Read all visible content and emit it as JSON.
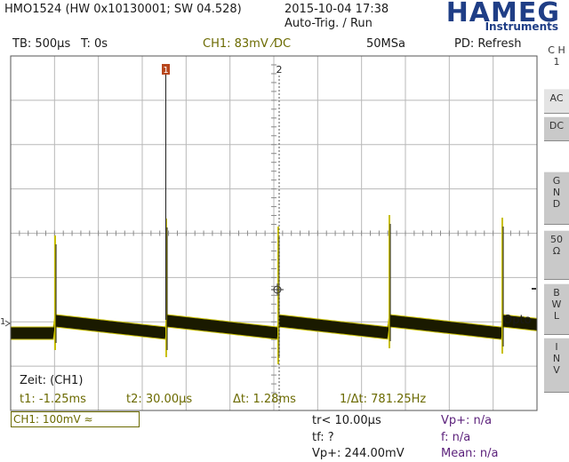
{
  "header": {
    "device": "HMO1524 (HW 0x10130001; SW 04.528)",
    "datetime": "2015-10-04 17:38",
    "trigger_mode": "Auto-Trig. / Run"
  },
  "logo": {
    "brand": "HAMEG",
    "sub": "Instruments"
  },
  "statusbar": {
    "timebase": "TB: 500µs",
    "trigger_time": "T: 0s",
    "channel": "CH1: 83mV ⁄DC",
    "sample_rate": "50MSa",
    "mode": "PD: Refresh"
  },
  "markers": {
    "cursor1": "1",
    "cursor2": "2"
  },
  "right_panel": {
    "channel_label": "C H 1",
    "buttons": [
      {
        "label": "AC",
        "selected": true
      },
      {
        "label": "DC",
        "selected": false
      },
      {
        "label": "G N D",
        "selected": false
      },
      {
        "label": "50 Ω",
        "selected": false
      },
      {
        "label": "B W L",
        "selected": false
      },
      {
        "label": "I N V",
        "selected": false
      }
    ]
  },
  "measurement": {
    "title": "Zeit: (CH1)",
    "t1": "t1: -1.25ms",
    "t2": "t2: 30.00µs",
    "dt": "Δt: 1.28ms",
    "inv_dt": "1/Δt: 781.25Hz"
  },
  "overlay_text": "Opto",
  "bottom": {
    "ch1_scale": "CH1: 100mV ≈",
    "tr": "tr< 10.00µs",
    "tf": "tf: ?",
    "vp_plus": "Vp+: 244.00mV",
    "vp_plus_na": "Vp+: n/a",
    "freq": "f: n/a",
    "mean": "Mean: n/a"
  },
  "colors": {
    "trace": "#1a1a00",
    "trace_edge": "#c9c000",
    "accent": "#6b6a00",
    "grid": "#b8b8b8",
    "cursor_marker": "#b8461c"
  }
}
